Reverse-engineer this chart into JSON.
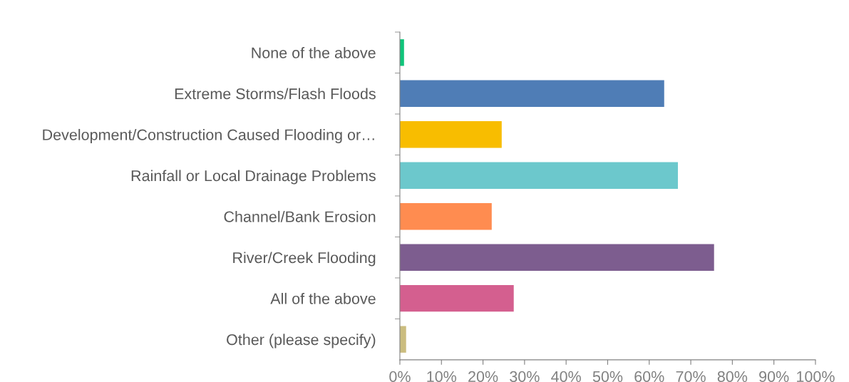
{
  "chart_data": {
    "type": "bar",
    "orientation": "horizontal",
    "categories": [
      "None of the above",
      "Extreme Storms/Flash Floods",
      "Development/Construction Caused Flooding or…",
      "Rainfall or Local Drainage Problems",
      "Channel/Bank Erosion",
      "River/Creek Flooding",
      "All of the above",
      "Other (please specify)"
    ],
    "values": [
      1.0,
      63.6,
      24.5,
      66.9,
      22.1,
      75.6,
      27.4,
      1.5
    ],
    "colors": [
      "#10c47a",
      "#4f7db6",
      "#f8bd00",
      "#6cc8cc",
      "#ff8c50",
      "#7d5d8f",
      "#d45f8f",
      "#cbbd7f"
    ],
    "xlim": [
      0,
      100
    ],
    "xticks": [
      {
        "value": 0,
        "label": "0%"
      },
      {
        "value": 10,
        "label": "10%"
      },
      {
        "value": 20,
        "label": "20%"
      },
      {
        "value": 30,
        "label": "30%"
      },
      {
        "value": 40,
        "label": "40%"
      },
      {
        "value": 50,
        "label": "50%"
      },
      {
        "value": 60,
        "label": "60%"
      },
      {
        "value": 70,
        "label": "70%"
      },
      {
        "value": 80,
        "label": "80%"
      },
      {
        "value": 90,
        "label": "90%"
      },
      {
        "value": 100,
        "label": "100%"
      }
    ],
    "grid": false,
    "legend": false
  }
}
